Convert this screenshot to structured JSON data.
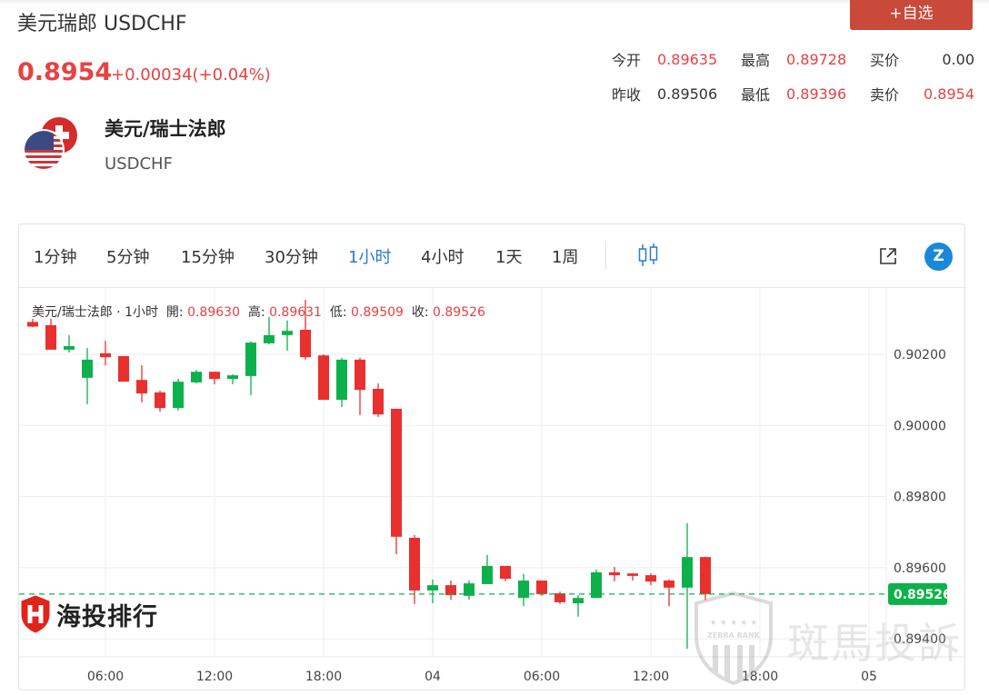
{
  "header": {
    "title": "美元瑞郎 USDCHF",
    "price": "0.8954",
    "change": "+0.00034(+0.04%)",
    "fav_button": "+自选"
  },
  "stats": [
    [
      {
        "label": "今开",
        "value": "0.89635",
        "color": "red"
      },
      {
        "label": "最高",
        "value": "0.89728",
        "color": "red"
      },
      {
        "label": "买价",
        "value": "0.00",
        "color": "dark"
      }
    ],
    [
      {
        "label": "昨收",
        "value": "0.89506",
        "color": "dark"
      },
      {
        "label": "最低",
        "value": "0.89396",
        "color": "red"
      },
      {
        "label": "卖价",
        "value": "0.8954",
        "color": "red"
      }
    ]
  ],
  "pair": {
    "name": "美元/瑞士法郎",
    "code": "USDCHF",
    "icon": "usd-chf-flags-icon"
  },
  "toolbar": {
    "timeframes": [
      "1分钟",
      "5分钟",
      "15分钟",
      "30分钟",
      "1小时",
      "4小时",
      "1天",
      "1周"
    ],
    "active": "1小时",
    "icons": [
      "candlestick-icon",
      "external-link-icon",
      "zebra-logo-icon"
    ],
    "z_glyph": "Z"
  },
  "legend": {
    "symbol": "美元/瑞士法郎",
    "sep": "·",
    "interval": "1小时",
    "open_label": "開:",
    "open": "0.89630",
    "high_label": "高:",
    "high": "0.89631",
    "low_label": "低:",
    "low": "0.89509",
    "close_label": "收:",
    "close": "0.89526"
  },
  "watermarks": {
    "left": "海投排行",
    "right": "斑馬投訴",
    "badge": "ZEBRA RANK"
  },
  "colors": {
    "up": "#0db14b",
    "down": "#e8302f",
    "accent": "#2a7ad1",
    "fav": "#c9493a"
  },
  "chart_data": {
    "type": "candlestick",
    "y_ticks": [
      "0.90200",
      "0.90000",
      "0.89800",
      "0.89600",
      "0.89400"
    ],
    "ylim": [
      0.8935,
      0.90375
    ],
    "x_ticks": [
      "06:00",
      "12:00",
      "18:00",
      "04",
      "06:00",
      "12:00",
      "18:00",
      "05"
    ],
    "last_price": "0.89526",
    "grid": true,
    "ohlc": [
      [
        0.90291,
        0.903,
        0.90276,
        0.90278
      ],
      [
        0.90282,
        0.903,
        0.90213,
        0.90213
      ],
      [
        0.90213,
        0.90254,
        0.90205,
        0.90223
      ],
      [
        0.90134,
        0.90218,
        0.9006,
        0.90185
      ],
      [
        0.90203,
        0.90238,
        0.90169,
        0.90192
      ],
      [
        0.90195,
        0.90195,
        0.90123,
        0.90123
      ],
      [
        0.90128,
        0.90169,
        0.90065,
        0.9009
      ],
      [
        0.90093,
        0.90098,
        0.90039,
        0.90049
      ],
      [
        0.90049,
        0.90131,
        0.90042,
        0.90123
      ],
      [
        0.90121,
        0.90156,
        0.90118,
        0.90151
      ],
      [
        0.90151,
        0.90151,
        0.90116,
        0.90131
      ],
      [
        0.90131,
        0.90144,
        0.90116,
        0.90141
      ],
      [
        0.90139,
        0.90236,
        0.90085,
        0.90233
      ],
      [
        0.90231,
        0.90305,
        0.90228,
        0.90254
      ],
      [
        0.90254,
        0.90295,
        0.9021,
        0.90266
      ],
      [
        0.90269,
        0.90353,
        0.90185,
        0.90192
      ],
      [
        0.90197,
        0.902,
        0.90072,
        0.90072
      ],
      [
        0.90072,
        0.9019,
        0.90052,
        0.90185
      ],
      [
        0.90185,
        0.9019,
        0.90029,
        0.901
      ],
      [
        0.90103,
        0.90118,
        0.90024,
        0.90031
      ],
      [
        0.90047,
        0.90047,
        0.89638,
        0.89687
      ],
      [
        0.89684,
        0.89692,
        0.89498,
        0.89536
      ],
      [
        0.89536,
        0.89567,
        0.895,
        0.89551
      ],
      [
        0.89551,
        0.89564,
        0.8951,
        0.89523
      ],
      [
        0.89521,
        0.89564,
        0.8951,
        0.89556
      ],
      [
        0.89554,
        0.89636,
        0.89554,
        0.89605
      ],
      [
        0.89605,
        0.89605,
        0.89562,
        0.89569
      ],
      [
        0.89515,
        0.89582,
        0.89492,
        0.89564
      ],
      [
        0.89564,
        0.89564,
        0.89521,
        0.89526
      ],
      [
        0.89528,
        0.89533,
        0.89498,
        0.89503
      ],
      [
        0.895,
        0.89523,
        0.89462,
        0.89515
      ],
      [
        0.89515,
        0.89595,
        0.89515,
        0.89587
      ],
      [
        0.89587,
        0.89602,
        0.89562,
        0.89579
      ],
      [
        0.89584,
        0.89584,
        0.89564,
        0.89577
      ],
      [
        0.89579,
        0.89584,
        0.89551,
        0.89561
      ],
      [
        0.89564,
        0.89567,
        0.89492,
        0.89544
      ],
      [
        0.89544,
        0.89725,
        0.89372,
        0.8963
      ],
      [
        0.8963,
        0.89631,
        0.89509,
        0.89526
      ]
    ]
  }
}
